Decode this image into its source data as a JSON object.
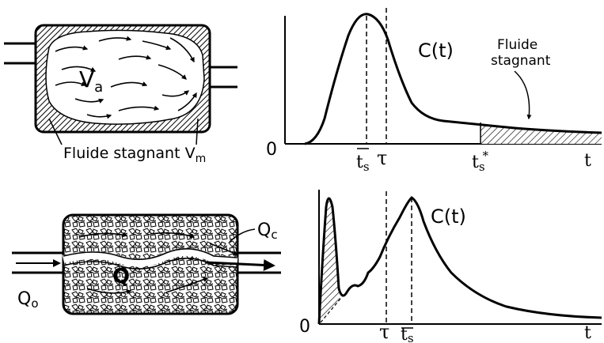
{
  "top": {
    "vessel": {
      "active_volume_label": "V",
      "active_volume_sub": "a",
      "stagnant_label": "Fluide stagnant V",
      "stagnant_sub": "m"
    },
    "graph": {
      "origin": "0",
      "curve_label": "C(t)",
      "stagnant_annotation_line1": "Fluide",
      "stagnant_annotation_line2": "stagnant",
      "tick_ts": "t",
      "tick_ts_sub": "s",
      "tick_tau": "τ",
      "tick_tsstar": "t",
      "tick_tsstar_sub": "s",
      "tick_tsstar_sup": "*",
      "axis_t": "t"
    }
  },
  "bottom": {
    "vessel": {
      "inlet_label": "Q",
      "inlet_sub": "o",
      "bypass_label": "Q",
      "bypass_sub": "c",
      "inner_label": "Q"
    },
    "graph": {
      "origin": "0",
      "curve_label": "C(t)",
      "tick_tau": "τ",
      "tick_ts": "t",
      "tick_ts_sub": "s",
      "axis_t": "t"
    }
  },
  "colors": {
    "ink": "#000000",
    "paper": "#ffffff"
  }
}
